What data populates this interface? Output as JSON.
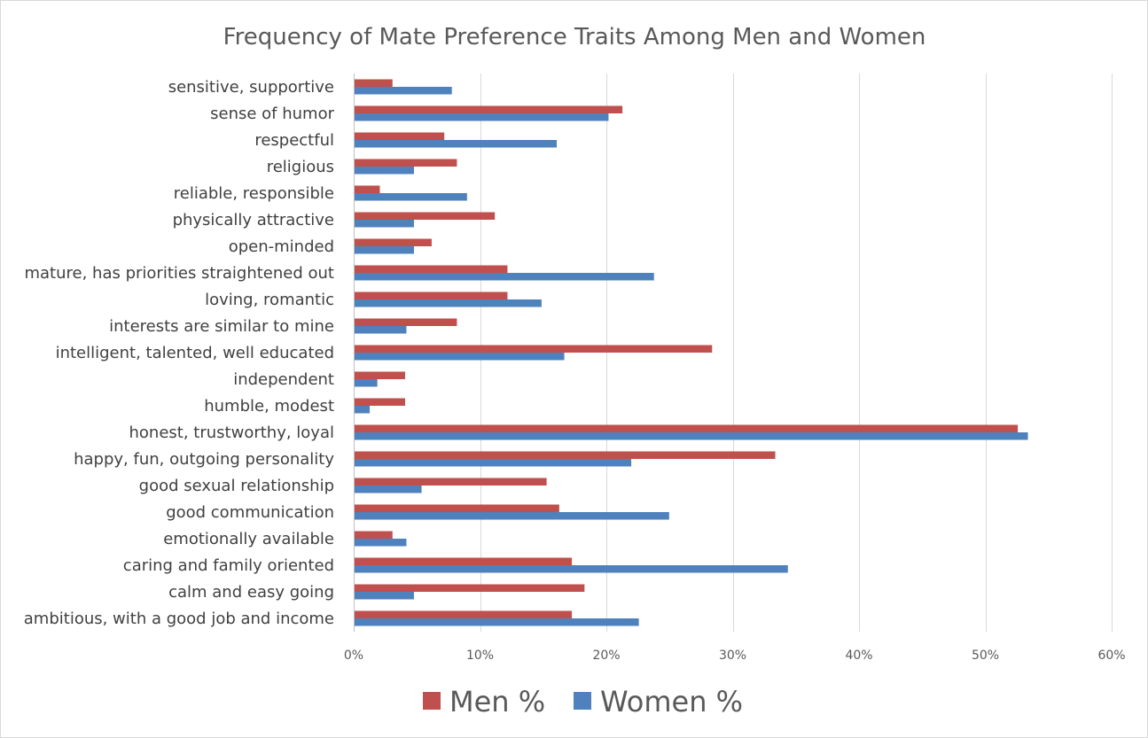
{
  "chart_data": {
    "type": "bar",
    "orientation": "horizontal",
    "title": "Frequency of Mate Preference Traits Among Men and Women",
    "xlabel": "",
    "ylabel": "",
    "xlim": [
      0,
      60
    ],
    "x_ticks": [
      "0%",
      "10%",
      "20%",
      "30%",
      "40%",
      "50%",
      "60%"
    ],
    "x_tick_values": [
      0,
      10,
      20,
      30,
      40,
      50,
      60
    ],
    "grid": true,
    "legend_position": "bottom",
    "categories": [
      "sensitive, supportive",
      "sense of humor",
      "respectful",
      "religious",
      "reliable, responsible",
      "physically attractive",
      "open-minded",
      "mature, has priorities straightened out",
      "loving, romantic",
      "interests are similar to mine",
      "intelligent, talented, well educated",
      "independent",
      "humble, modest",
      "honest, trustworthy, loyal",
      "happy, fun, outgoing personality",
      "good sexual relationship",
      "good communication",
      "emotionally available",
      "caring and family oriented",
      "calm and easy going",
      "ambitious, with a good job and income"
    ],
    "series": [
      {
        "name": "Men %",
        "color": "#c0504d",
        "values": [
          3.0,
          21.2,
          7.1,
          8.1,
          2.0,
          11.1,
          6.1,
          12.1,
          12.1,
          8.1,
          28.3,
          4.0,
          4.0,
          52.5,
          33.3,
          15.2,
          16.2,
          3.0,
          17.2,
          18.2,
          17.2
        ]
      },
      {
        "name": "Women %",
        "color": "#4f81bd",
        "values": [
          7.7,
          20.1,
          16.0,
          4.7,
          8.9,
          4.7,
          4.7,
          23.7,
          14.8,
          4.1,
          16.6,
          1.8,
          1.2,
          53.3,
          21.9,
          5.3,
          24.9,
          4.1,
          34.3,
          4.7,
          22.5
        ]
      }
    ]
  }
}
